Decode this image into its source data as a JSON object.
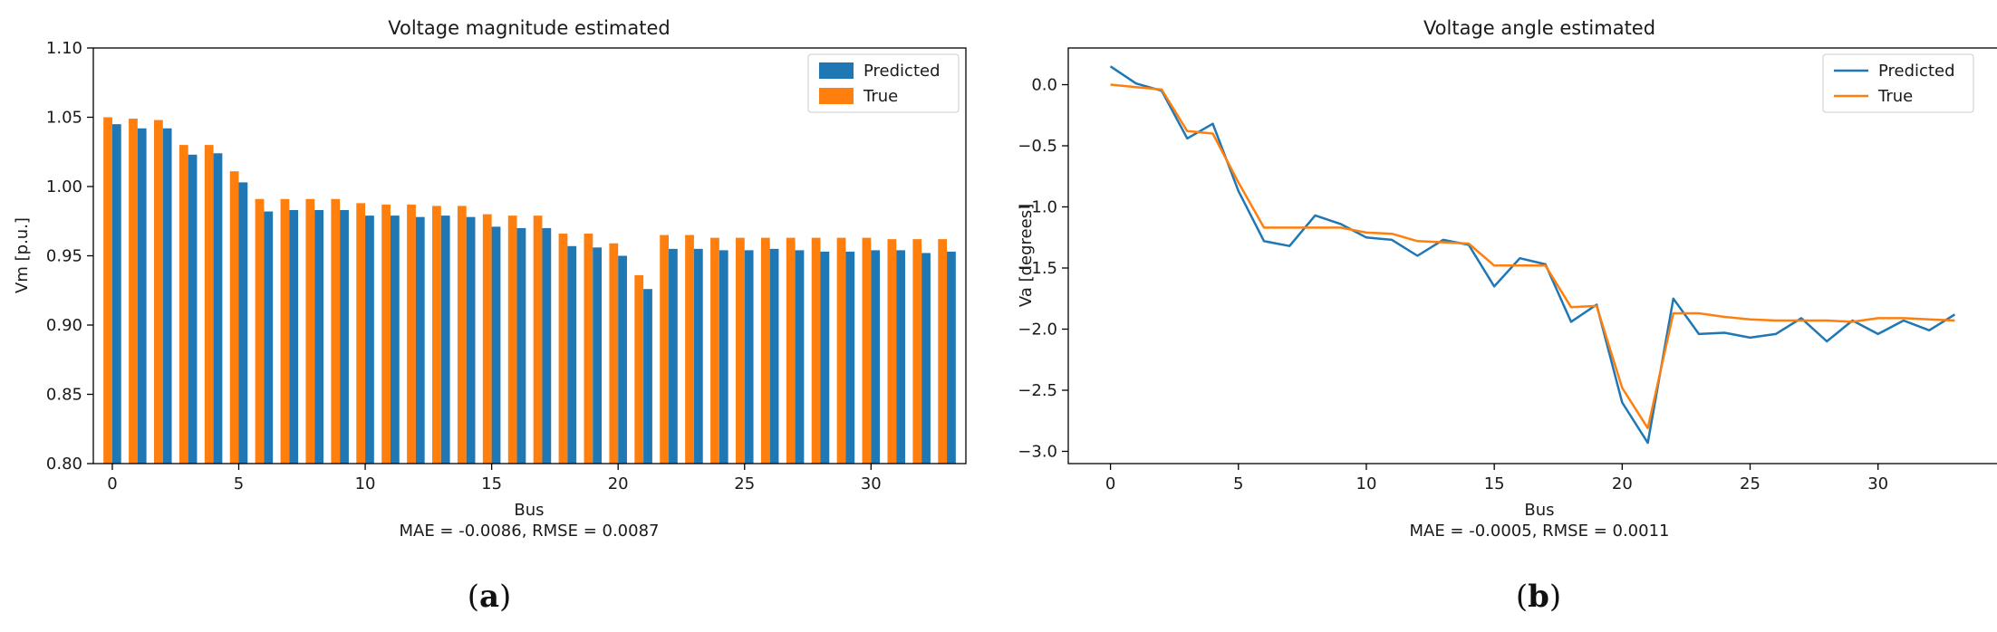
{
  "colors": {
    "predicted": "#1f77b4",
    "true": "#ff7f0e"
  },
  "panel_labels": [
    {
      "open": "(",
      "letter": "a",
      "close": ")"
    },
    {
      "open": "(",
      "letter": "b",
      "close": ")"
    }
  ],
  "chart_data": [
    {
      "type": "bar",
      "title": "Voltage magnitude estimated",
      "xlabel": "Bus",
      "ylabel": "Vm [p.u.]",
      "metrics": "MAE = -0.0086, RMSE = 0.0087",
      "ylim": [
        0.8,
        1.1
      ],
      "xlim": [
        -0.75,
        33.75
      ],
      "xticks": [
        0,
        5,
        10,
        15,
        20,
        25,
        30
      ],
      "yticks": [
        "0.80",
        "0.85",
        "0.90",
        "0.95",
        "1.00",
        "1.05",
        "1.10"
      ],
      "grid": false,
      "legend_position": "top-right",
      "categories": [
        0,
        1,
        2,
        3,
        4,
        5,
        6,
        7,
        8,
        9,
        10,
        11,
        12,
        13,
        14,
        15,
        16,
        17,
        18,
        19,
        20,
        21,
        22,
        23,
        24,
        25,
        26,
        27,
        28,
        29,
        30,
        31,
        32,
        33
      ],
      "series": [
        {
          "name": "Predicted",
          "values": [
            1.045,
            1.042,
            1.042,
            1.023,
            1.024,
            1.003,
            0.982,
            0.983,
            0.983,
            0.983,
            0.979,
            0.979,
            0.978,
            0.979,
            0.978,
            0.971,
            0.97,
            0.97,
            0.957,
            0.956,
            0.95,
            0.926,
            0.955,
            0.955,
            0.954,
            0.954,
            0.955,
            0.954,
            0.953,
            0.953,
            0.954,
            0.954,
            0.952,
            0.953
          ]
        },
        {
          "name": "True",
          "values": [
            1.05,
            1.049,
            1.048,
            1.03,
            1.03,
            1.011,
            0.991,
            0.991,
            0.991,
            0.991,
            0.988,
            0.987,
            0.987,
            0.986,
            0.986,
            0.98,
            0.979,
            0.979,
            0.966,
            0.966,
            0.959,
            0.936,
            0.965,
            0.965,
            0.963,
            0.963,
            0.963,
            0.963,
            0.963,
            0.963,
            0.963,
            0.962,
            0.962,
            0.962
          ]
        }
      ]
    },
    {
      "type": "line",
      "title": "Voltage angle estimated",
      "xlabel": "Bus",
      "ylabel": "Va [degrees]",
      "metrics": "MAE = -0.0005, RMSE = 0.0011",
      "ylim": [
        -3.1,
        0.3
      ],
      "xlim": [
        -1.65,
        34.65
      ],
      "xticks": [
        0,
        5,
        10,
        15,
        20,
        25,
        30
      ],
      "yticks": [
        "0.0",
        "−0.5",
        "−1.0",
        "−1.5",
        "−2.0",
        "−2.5",
        "−3.0"
      ],
      "grid": false,
      "legend_position": "top-right",
      "x": [
        0,
        1,
        2,
        3,
        4,
        5,
        6,
        7,
        8,
        9,
        10,
        11,
        12,
        13,
        14,
        15,
        16,
        17,
        18,
        19,
        20,
        21,
        22,
        23,
        24,
        25,
        26,
        27,
        28,
        29,
        30,
        31,
        32,
        33
      ],
      "series": [
        {
          "name": "Predicted",
          "values": [
            0.15,
            0.01,
            -0.05,
            -0.44,
            -0.32,
            -0.87,
            -1.28,
            -1.32,
            -1.07,
            -1.14,
            -1.25,
            -1.27,
            -1.4,
            -1.27,
            -1.31,
            -1.65,
            -1.42,
            -1.47,
            -1.94,
            -1.8,
            -2.6,
            -2.93,
            -1.75,
            -2.04,
            -2.03,
            -2.07,
            -2.04,
            -1.91,
            -2.1,
            -1.93,
            -2.04,
            -1.93,
            -2.01,
            -1.88
          ]
        },
        {
          "name": "True",
          "values": [
            0.0,
            -0.02,
            -0.04,
            -0.38,
            -0.4,
            -0.8,
            -1.17,
            -1.17,
            -1.17,
            -1.17,
            -1.21,
            -1.22,
            -1.28,
            -1.29,
            -1.3,
            -1.48,
            -1.48,
            -1.48,
            -1.82,
            -1.81,
            -2.48,
            -2.81,
            -1.87,
            -1.87,
            -1.9,
            -1.92,
            -1.93,
            -1.93,
            -1.93,
            -1.94,
            -1.91,
            -1.91,
            -1.92,
            -1.93
          ]
        }
      ]
    }
  ]
}
